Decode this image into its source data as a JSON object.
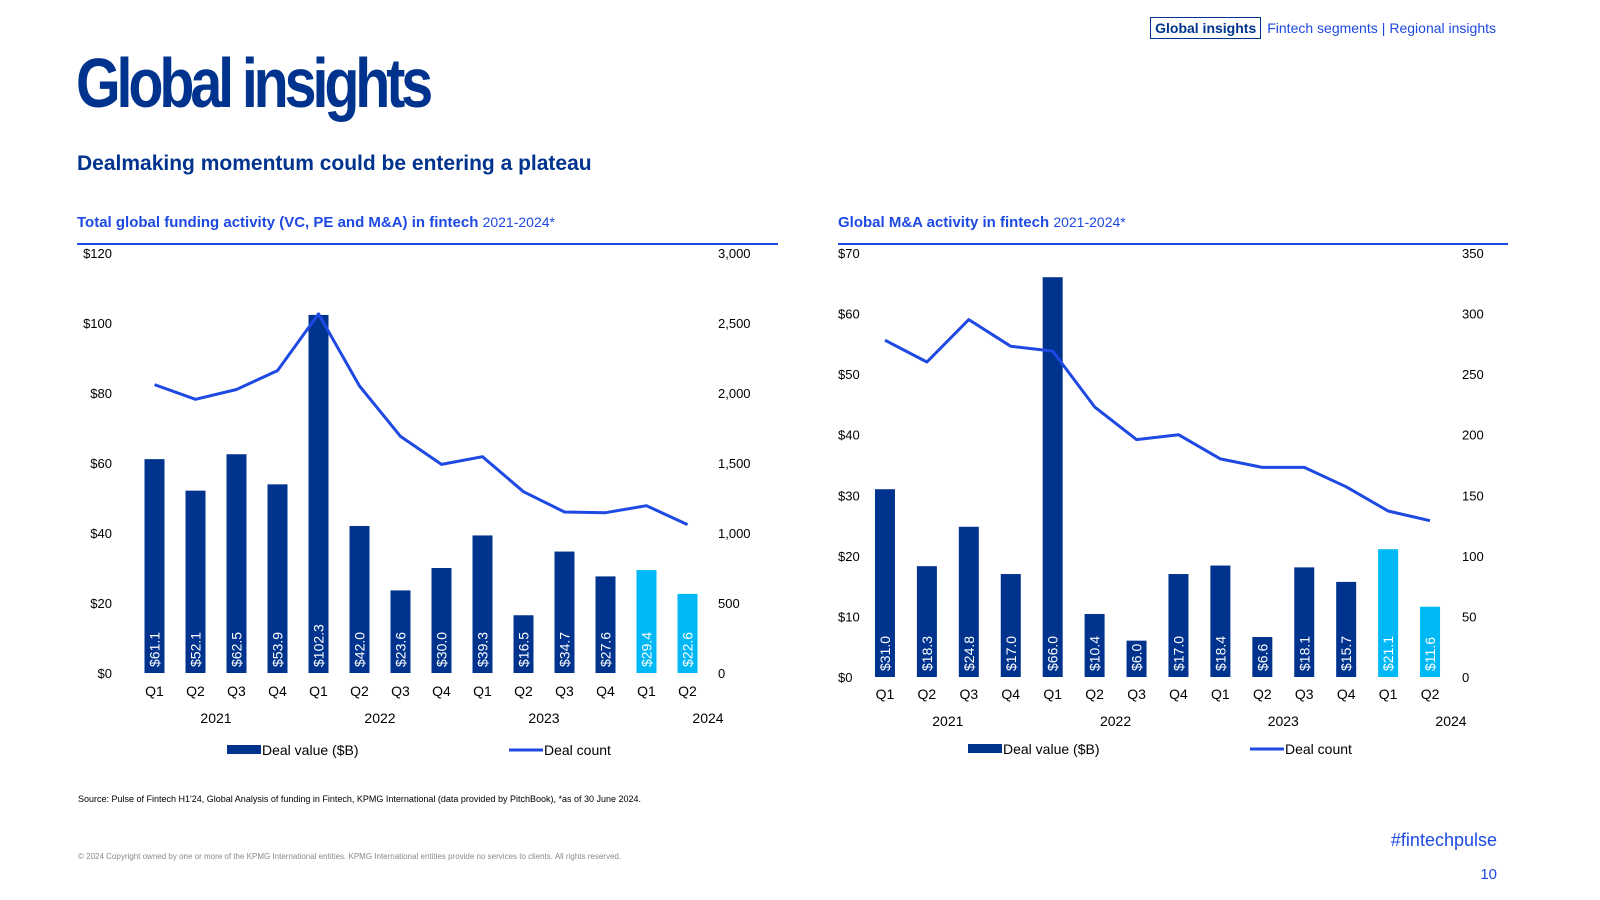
{
  "nav": {
    "active": "Global insights",
    "items": [
      "Fintech segments",
      "Regional insights"
    ],
    "separator": "|"
  },
  "page": {
    "title": "Global insights",
    "subtitle": "Dealmaking momentum could be entering a plateau",
    "source": "Source: Pulse of Fintech H1'24, Global Analysis of funding in Fintech, KPMG International (data provided by PitchBook), *as of 30 June 2024.",
    "copyright": "© 2024 Copyright owned by one or more of the KPMG International entities. KPMG International entities provide no services to clients. All rights reserved.",
    "hashtag": "#fintechpulse",
    "page_number": "10"
  },
  "colors": {
    "brand_dark": "#00338D",
    "accent_blue": "#1E49E2",
    "bar_dark": "#00338D",
    "bar_light": "#00B8F5",
    "line": "#1E49E2"
  },
  "chart_data": [
    {
      "type": "bar",
      "title": "Total global funding activity (VC, PE and M&A) in fintech",
      "title_range": "2021-2024*",
      "categories": [
        "Q1",
        "Q2",
        "Q3",
        "Q4",
        "Q1",
        "Q2",
        "Q3",
        "Q4",
        "Q1",
        "Q2",
        "Q3",
        "Q4",
        "Q1",
        "Q2"
      ],
      "years": [
        {
          "label": "2021",
          "quarters": 4
        },
        {
          "label": "2022",
          "quarters": 4
        },
        {
          "label": "2023",
          "quarters": 4
        },
        {
          "label": "2024",
          "quarters": 2
        }
      ],
      "series": [
        {
          "name": "Deal value ($B)",
          "type": "bar",
          "axis": "left",
          "values": [
            61.1,
            52.1,
            62.5,
            53.9,
            102.3,
            42.0,
            23.6,
            30.0,
            39.3,
            16.5,
            34.7,
            27.6,
            29.4,
            22.6
          ],
          "labels": [
            "$61.1",
            "$52.1",
            "$62.5",
            "$53.9",
            "$102.3",
            "$42.0",
            "$23.6",
            "$30.0",
            "$39.3",
            "$16.5",
            "$34.7",
            "$27.6",
            "$29.4",
            "$22.6"
          ]
        },
        {
          "name": "Deal count",
          "type": "line",
          "axis": "right",
          "values": [
            2060,
            1955,
            2025,
            2160,
            2565,
            2050,
            1690,
            1490,
            1545,
            1295,
            1150,
            1145,
            1195,
            1060
          ]
        }
      ],
      "highlight_from_index": 12,
      "left_axis": {
        "ylim": [
          0,
          120
        ],
        "ticks": [
          0,
          20,
          40,
          60,
          80,
          100,
          120
        ],
        "tick_labels": [
          "$0",
          "$20",
          "$40",
          "$60",
          "$80",
          "$100",
          "$120"
        ]
      },
      "right_axis": {
        "ylim": [
          0,
          3000
        ],
        "ticks": [
          0,
          500,
          1000,
          1500,
          2000,
          2500,
          3000
        ],
        "tick_labels": [
          "0",
          "500",
          "1,000",
          "1,500",
          "2,000",
          "2,500",
          "3,000"
        ]
      },
      "legend": [
        "Deal value ($B)",
        "Deal count"
      ],
      "legend_position": "bottom",
      "grid": false
    },
    {
      "type": "bar",
      "title": "Global M&A activity in fintech",
      "title_range": "2021-2024*",
      "categories": [
        "Q1",
        "Q2",
        "Q3",
        "Q4",
        "Q1",
        "Q2",
        "Q3",
        "Q4",
        "Q1",
        "Q2",
        "Q3",
        "Q4",
        "Q1",
        "Q2"
      ],
      "years": [
        {
          "label": "2021",
          "quarters": 4
        },
        {
          "label": "2022",
          "quarters": 4
        },
        {
          "label": "2023",
          "quarters": 4
        },
        {
          "label": "2024",
          "quarters": 2
        }
      ],
      "series": [
        {
          "name": "Deal value ($B)",
          "type": "bar",
          "axis": "left",
          "values": [
            31.0,
            18.3,
            24.8,
            17.0,
            66.0,
            10.4,
            6.0,
            17.0,
            18.4,
            6.6,
            18.1,
            15.7,
            21.1,
            11.6
          ],
          "labels": [
            "$31.0",
            "$18.3",
            "$24.8",
            "$17.0",
            "$66.0",
            "$10.4",
            "$6.0",
            "$17.0",
            "$18.4",
            "$6.6",
            "$18.1",
            "$15.7",
            "$21.1",
            "$11.6"
          ]
        },
        {
          "name": "Deal count",
          "type": "line",
          "axis": "right",
          "values": [
            278,
            260,
            295,
            273,
            269,
            223,
            196,
            200,
            180,
            173,
            173,
            157,
            137,
            129
          ]
        }
      ],
      "highlight_from_index": 12,
      "left_axis": {
        "ylim": [
          0,
          70
        ],
        "ticks": [
          0,
          10,
          20,
          30,
          40,
          50,
          60,
          70
        ],
        "tick_labels": [
          "$0",
          "$10",
          "$20",
          "$30",
          "$40",
          "$50",
          "$60",
          "$70"
        ]
      },
      "right_axis": {
        "ylim": [
          0,
          350
        ],
        "ticks": [
          0,
          50,
          100,
          150,
          200,
          250,
          300,
          350
        ],
        "tick_labels": [
          "0",
          "50",
          "100",
          "150",
          "200",
          "250",
          "300",
          "350"
        ]
      },
      "legend": [
        "Deal value ($B)",
        "Deal count"
      ],
      "legend_position": "bottom",
      "grid": false
    }
  ]
}
